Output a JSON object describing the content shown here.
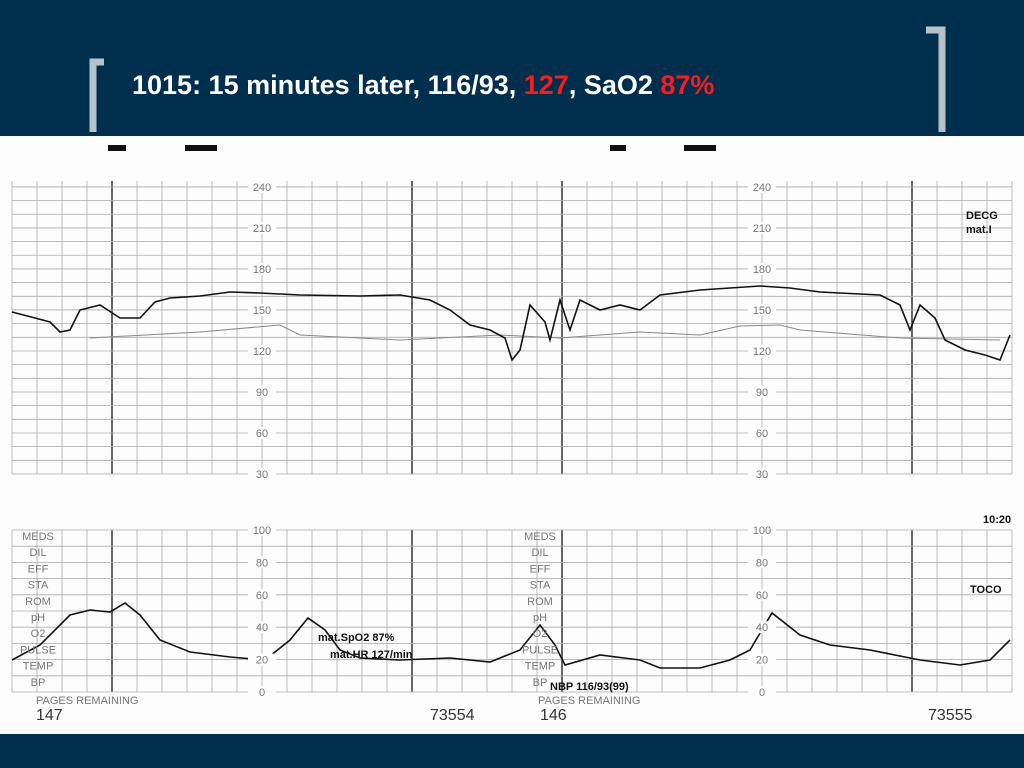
{
  "title": {
    "part1": "1015: 15 minutes later, 116/93, ",
    "hr": "127",
    "part2": ", SaO2 ",
    "sat": "87%"
  },
  "strip": {
    "upper_scale": [
      "240",
      "210",
      "180",
      "150",
      "120",
      "90",
      "60",
      "30"
    ],
    "lower_scale": [
      "100",
      "80",
      "60",
      "40",
      "20",
      "0"
    ],
    "lower_labels": [
      "MEDS",
      "DIL",
      "EFF",
      "STA",
      "ROM",
      "pH",
      "O2",
      "PULSE",
      "TEMP",
      "BP"
    ],
    "legend_upper": [
      "DECG",
      "mat.I"
    ],
    "time": "10:20",
    "legend_lower": "TOCO",
    "annotations": {
      "spo2": "mat.SpO2  87%",
      "mhr": "mat.HR  127/min",
      "nbp": "NBP  116/93(99)"
    },
    "pages_label": "PAGES REMAINING",
    "page1": {
      "remaining": "147",
      "number": "73554"
    },
    "page2": {
      "remaining": "146",
      "number": "73555"
    }
  }
}
